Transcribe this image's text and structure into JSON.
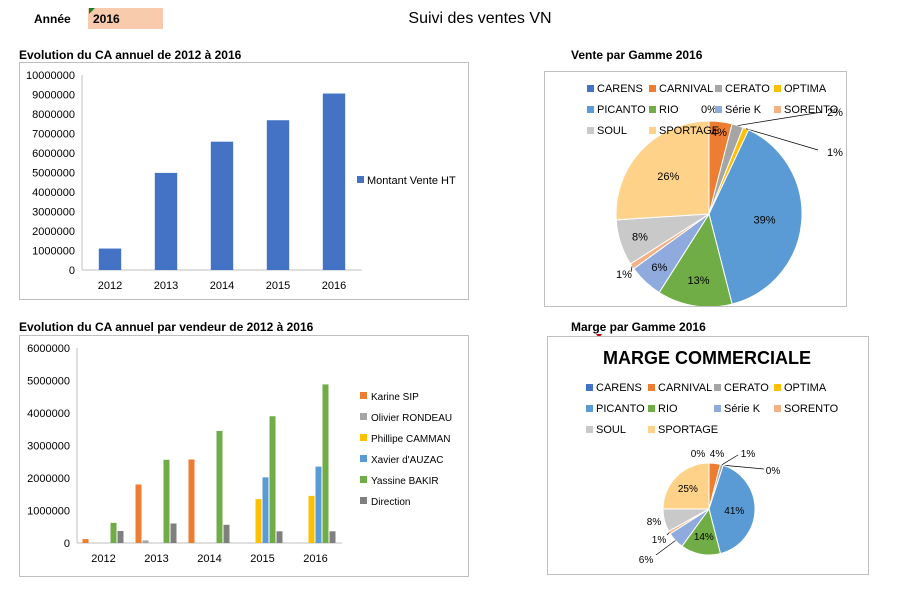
{
  "header": {
    "year_label": "Année",
    "year_value": "2016",
    "title": "Suivi des ventes VN"
  },
  "colors": {
    "bar_blue": "#4472c4",
    "year_cell": "#f8cbad",
    "vendeurs": [
      "#ed7d31",
      "#a5a5a5",
      "#ffc000",
      "#5b9bd5",
      "#70ad47",
      "#7f7f7f"
    ],
    "gammes": [
      "#4472c4",
      "#ed7d31",
      "#a5a5a5",
      "#ffc000",
      "#5b9bd5",
      "#70ad47",
      "#8faadc",
      "#f4b183",
      "#c9c9c9",
      "#ffd28a"
    ]
  },
  "chart_data": [
    {
      "id": "ca_annuel",
      "type": "bar",
      "title": "Evolution du CA annuel de 2012 à 2016",
      "categories": [
        "2012",
        "2013",
        "2014",
        "2015",
        "2016"
      ],
      "series": [
        {
          "name": "Montant Vente HT",
          "values": [
            1100000,
            4980000,
            6580000,
            7680000,
            9050000
          ]
        }
      ],
      "ylim": [
        0,
        10000000
      ],
      "yticks": [
        "0",
        "1000000",
        "2000000",
        "3000000",
        "4000000",
        "5000000",
        "6000000",
        "7000000",
        "8000000",
        "9000000",
        "10000000"
      ],
      "legend": "right",
      "grid": false
    },
    {
      "id": "ca_vendeur",
      "type": "bar",
      "title": "Evolution du CA annuel par vendeur de 2012 à 2016",
      "categories": [
        "2012",
        "2013",
        "2014",
        "2015",
        "2016"
      ],
      "series": [
        {
          "name": "Karine SIP",
          "values": [
            120000,
            1800000,
            2570000,
            0,
            0
          ]
        },
        {
          "name": "Olivier RONDEAU",
          "values": [
            0,
            80000,
            0,
            0,
            0
          ]
        },
        {
          "name": "Phillipe CAMMAN",
          "values": [
            0,
            0,
            0,
            1350000,
            1450000
          ]
        },
        {
          "name": "Xavier d'AUZAC",
          "values": [
            0,
            0,
            0,
            2020000,
            2350000
          ]
        },
        {
          "name": "Yassine BAKIR",
          "values": [
            620000,
            2560000,
            3450000,
            3900000,
            4880000
          ]
        },
        {
          "name": "Direction",
          "values": [
            370000,
            600000,
            560000,
            360000,
            360000
          ]
        }
      ],
      "ylim": [
        0,
        6000000
      ],
      "yticks": [
        "0",
        "1000000",
        "2000000",
        "3000000",
        "4000000",
        "5000000",
        "6000000"
      ],
      "legend": "right",
      "grid": false
    },
    {
      "id": "vente_gamme",
      "type": "pie",
      "title": "Vente par Gamme 2016",
      "labels": [
        "CARENS",
        "CARNIVAL",
        "CERATO",
        "OPTIMA",
        "PICANTO",
        "RIO",
        "Série K",
        "SORENTO",
        "SOUL",
        "SPORTAGE"
      ],
      "values": [
        0,
        4,
        2,
        1,
        39,
        13,
        6,
        1,
        8,
        26
      ],
      "value_labels": [
        "0%",
        "4%",
        "2%",
        "1%",
        "39%",
        "13%",
        "6%",
        "1%",
        "8%",
        "26%"
      ],
      "legend": "top"
    },
    {
      "id": "marge_gamme",
      "type": "pie",
      "title": "Marge par Gamme 2016",
      "chart_title": "MARGE COMMERCIALE",
      "labels": [
        "CARENS",
        "CARNIVAL",
        "CERATO",
        "OPTIMA",
        "PICANTO",
        "RIO",
        "Série K",
        "SORENTO",
        "SOUL",
        "SPORTAGE"
      ],
      "values": [
        0,
        4,
        1,
        0,
        41,
        14,
        6,
        1,
        8,
        25
      ],
      "value_labels": [
        "0%",
        "4%",
        "1%",
        "0%",
        "41%",
        "14%",
        "6%",
        "1%",
        "8%",
        "25%"
      ],
      "legend": "top"
    }
  ]
}
